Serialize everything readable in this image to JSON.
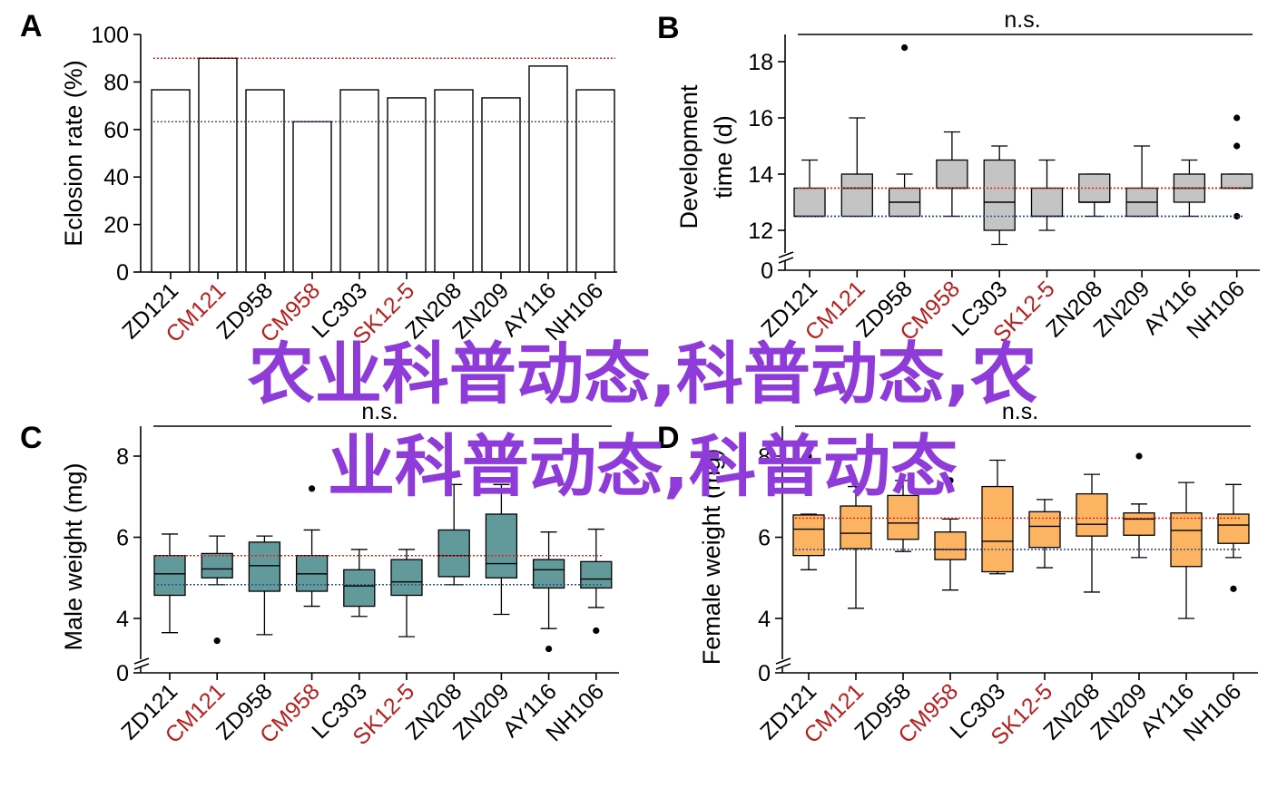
{
  "colors": {
    "red_line": "#e0201e",
    "blue_line": "#2a4d8f",
    "red_label": "#b81e1e",
    "box_b": "#c4c4c4",
    "box_c": "#62999a",
    "box_d": "#fdb462",
    "overlay": "#8e3bd9"
  },
  "overlay_text": {
    "line1": "农业科普动态,科普动态,农",
    "line2": "业科普动态,科普动态"
  },
  "chart_data": [
    {
      "panel": "A",
      "type": "bar",
      "categories": [
        "ZD121",
        "CM121",
        "ZD958",
        "CM958",
        "LC303",
        "SK12-5",
        "ZN208",
        "ZN209",
        "AY116",
        "NH106"
      ],
      "highlighted_categories": [
        "CM121",
        "CM958",
        "SK12-5"
      ],
      "values": [
        76.7,
        90,
        76.7,
        63.3,
        76.7,
        73.3,
        76.7,
        73.3,
        86.7,
        76.7
      ],
      "ylabel": "Eclosion rate (%)",
      "ylim": [
        0,
        100
      ],
      "yticks": [
        0,
        20,
        40,
        60,
        80,
        100
      ],
      "ref_lines": {
        "red": 90,
        "blue": 63.3
      }
    },
    {
      "panel": "B",
      "type": "box",
      "categories": [
        "ZD121",
        "CM121",
        "ZD958",
        "CM958",
        "LC303",
        "SK12-5",
        "ZN208",
        "ZN209",
        "AY116",
        "NH106"
      ],
      "highlighted_categories": [
        "CM121",
        "CM958",
        "SK12-5"
      ],
      "ylabel_line1": "Development",
      "ylabel_line2": "time (d)",
      "ylim": [
        11.5,
        19
      ],
      "yticks": [
        12,
        14,
        16,
        18
      ],
      "axis_break_label": "0",
      "significance": "n.s.",
      "ref_lines": {
        "red": 13.5,
        "blue": 12.5
      },
      "boxes": [
        {
          "min": 12.5,
          "q1": 12.5,
          "median": 12.5,
          "q3": 13.5,
          "max": 14.5,
          "outliers": []
        },
        {
          "min": 12.5,
          "q1": 12.5,
          "median": 13.5,
          "q3": 14,
          "max": 16,
          "outliers": []
        },
        {
          "min": 12.5,
          "q1": 12.5,
          "median": 13,
          "q3": 13.5,
          "max": 14,
          "outliers": [
            18.5
          ]
        },
        {
          "min": 12.5,
          "q1": 13.5,
          "median": 13.5,
          "q3": 14.5,
          "max": 15.5,
          "outliers": []
        },
        {
          "min": 11.5,
          "q1": 12,
          "median": 13,
          "q3": 14.5,
          "max": 15,
          "outliers": []
        },
        {
          "min": 12,
          "q1": 12.5,
          "median": 12.5,
          "q3": 13.5,
          "max": 14.5,
          "outliers": []
        },
        {
          "min": 12.5,
          "q1": 13,
          "median": 13,
          "q3": 14,
          "max": 14,
          "outliers": []
        },
        {
          "min": 12.5,
          "q1": 12.5,
          "median": 13,
          "q3": 13.5,
          "max": 15,
          "outliers": []
        },
        {
          "min": 12.5,
          "q1": 13,
          "median": 13.5,
          "q3": 14,
          "max": 14.5,
          "outliers": []
        },
        {
          "min": 13.5,
          "q1": 13.5,
          "median": 13.5,
          "q3": 14,
          "max": 14,
          "outliers": [
            16,
            15,
            12.5
          ]
        }
      ]
    },
    {
      "panel": "C",
      "type": "box",
      "categories": [
        "ZD121",
        "CM121",
        "ZD958",
        "CM958",
        "LC303",
        "SK12-5",
        "ZN208",
        "ZN209",
        "AY116",
        "NH106"
      ],
      "highlighted_categories": [
        "CM121",
        "CM958",
        "SK12-5"
      ],
      "ylabel": "Male weight (mg)",
      "ylim": [
        3.35,
        8.5
      ],
      "yticks": [
        4,
        6,
        8
      ],
      "axis_break_label": "0",
      "significance": "n.s.",
      "ref_lines": {
        "red": 5.55,
        "blue": 4.83
      },
      "boxes": [
        {
          "min": 3.65,
          "q1": 4.57,
          "median": 5.1,
          "q3": 5.55,
          "max": 6.08,
          "outliers": []
        },
        {
          "min": 4.83,
          "q1": 5.0,
          "median": 5.22,
          "q3": 5.6,
          "max": 6.03,
          "outliers": [
            3.45
          ]
        },
        {
          "min": 3.6,
          "q1": 4.67,
          "median": 5.3,
          "q3": 5.88,
          "max": 6.03,
          "outliers": []
        },
        {
          "min": 4.3,
          "q1": 4.67,
          "median": 5.1,
          "q3": 5.55,
          "max": 6.18,
          "outliers": [
            7.2
          ]
        },
        {
          "min": 4.05,
          "q1": 4.3,
          "median": 4.8,
          "q3": 5.2,
          "max": 5.7,
          "outliers": []
        },
        {
          "min": 3.55,
          "q1": 4.57,
          "median": 4.9,
          "q3": 5.45,
          "max": 5.7,
          "outliers": []
        },
        {
          "min": 4.83,
          "q1": 5.03,
          "median": 5.55,
          "q3": 6.18,
          "max": 7.3,
          "outliers": []
        },
        {
          "min": 4.1,
          "q1": 5.0,
          "median": 5.35,
          "q3": 6.57,
          "max": 7.3,
          "outliers": []
        },
        {
          "min": 3.75,
          "q1": 4.75,
          "median": 5.2,
          "q3": 5.45,
          "max": 6.13,
          "outliers": [
            3.25
          ]
        },
        {
          "min": 4.27,
          "q1": 4.75,
          "median": 4.97,
          "q3": 5.4,
          "max": 6.2,
          "outliers": [
            3.7
          ]
        }
      ]
    },
    {
      "panel": "D",
      "type": "box",
      "categories": [
        "ZD121",
        "CM121",
        "ZD958",
        "CM958",
        "LC303",
        "SK12-5",
        "ZN208",
        "ZN209",
        "AY116",
        "NH106"
      ],
      "highlighted_categories": [
        "CM121",
        "CM958",
        "SK12-5"
      ],
      "ylabel": "Female weight (mg)",
      "ylim": [
        3.35,
        8.5
      ],
      "yticks": [
        4,
        6,
        8
      ],
      "axis_break_label": "0",
      "significance": "n.s.",
      "ref_lines": {
        "red": 6.47,
        "blue": 5.7
      },
      "boxes": [
        {
          "min": 5.2,
          "q1": 5.55,
          "median": 6.2,
          "q3": 6.55,
          "max": 6.57,
          "outliers": [
            8
          ]
        },
        {
          "min": 4.25,
          "q1": 5.72,
          "median": 6.1,
          "q3": 6.77,
          "max": 7.25,
          "outliers": []
        },
        {
          "min": 5.65,
          "q1": 5.95,
          "median": 6.35,
          "q3": 7.03,
          "max": 7.4,
          "outliers": []
        },
        {
          "min": 4.7,
          "q1": 5.45,
          "median": 5.7,
          "q3": 6.13,
          "max": 6.45,
          "outliers": [
            7.4
          ]
        },
        {
          "min": 5.1,
          "q1": 5.15,
          "median": 5.9,
          "q3": 7.25,
          "max": 7.9,
          "outliers": []
        },
        {
          "min": 5.25,
          "q1": 5.75,
          "median": 6.27,
          "q3": 6.63,
          "max": 6.93,
          "outliers": []
        },
        {
          "min": 4.65,
          "q1": 6.03,
          "median": 6.32,
          "q3": 7.07,
          "max": 7.55,
          "outliers": []
        },
        {
          "min": 5.5,
          "q1": 6.05,
          "median": 6.45,
          "q3": 6.6,
          "max": 6.82,
          "outliers": [
            8
          ]
        },
        {
          "min": 4.0,
          "q1": 5.28,
          "median": 6.17,
          "q3": 6.6,
          "max": 7.35,
          "outliers": []
        },
        {
          "min": 5.5,
          "q1": 5.85,
          "median": 6.3,
          "q3": 6.57,
          "max": 7.3,
          "outliers": [
            4.73
          ]
        }
      ]
    }
  ]
}
